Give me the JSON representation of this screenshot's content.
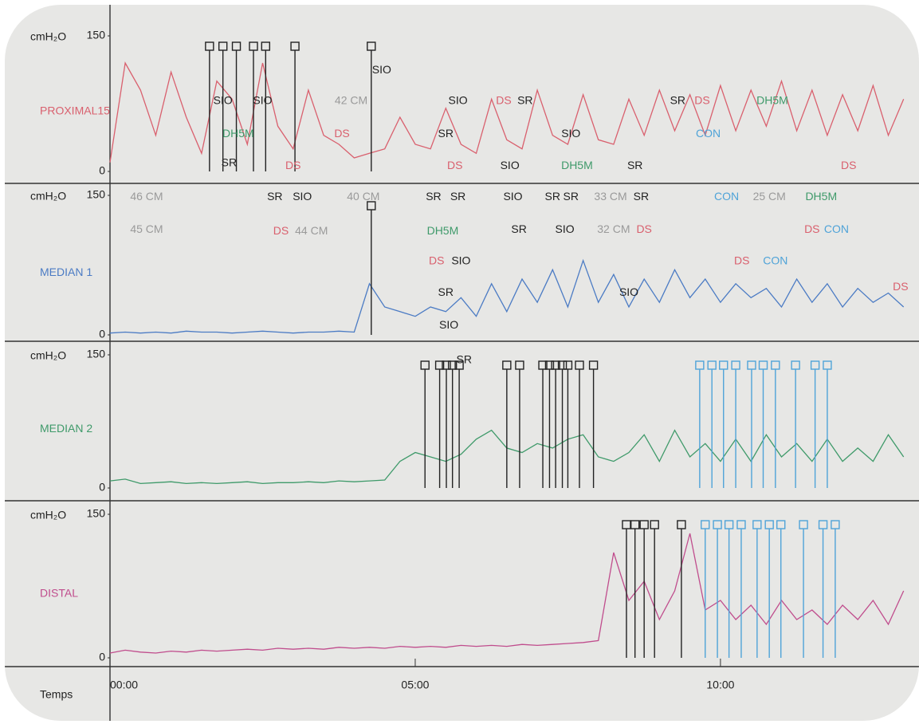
{
  "chart_data": [
    {
      "type": "line",
      "ylabel": "cmH₂O",
      "x": [
        0,
        0.25,
        0.5,
        0.75,
        1,
        1.25,
        1.5,
        1.75,
        2,
        2.25,
        2.5,
        2.75,
        3,
        3.25,
        3.5,
        3.75,
        4,
        4.25,
        4.5,
        4.75,
        5,
        5.25,
        5.5,
        5.75,
        6,
        6.25,
        6.5,
        6.75,
        7,
        7.25,
        7.5,
        7.75,
        8,
        8.25,
        8.5,
        8.75,
        9,
        9.25,
        9.5,
        9.75,
        10,
        10.25,
        10.5,
        10.75,
        11,
        11.25,
        11.5,
        11.75,
        12,
        12.25,
        12.5,
        12.75,
        13
      ],
      "series": [
        {
          "name": "PROXIMAL15",
          "color": "#d9606e",
          "values": [
            10,
            120,
            90,
            40,
            110,
            60,
            20,
            100,
            80,
            30,
            120,
            50,
            25,
            90,
            40,
            30,
            15,
            20,
            25,
            60,
            30,
            25,
            70,
            30,
            20,
            80,
            35,
            25,
            90,
            40,
            30,
            85,
            35,
            30,
            80,
            40,
            90,
            45,
            85,
            40,
            95,
            45,
            90,
            50,
            100,
            45,
            90,
            40,
            85,
            45,
            95,
            40,
            80
          ]
        }
      ],
      "xlim": [
        0,
        13.2
      ],
      "ylim": [
        0,
        150
      ],
      "yticks": [
        0,
        150
      ],
      "events": [
        {
          "color": "#222222",
          "x": [
            1.63,
            1.85,
            2.07,
            2.35,
            2.55,
            3.03,
            4.28
          ]
        }
      ],
      "annotations": [
        {
          "text": "SIO",
          "x": 1.85,
          "y": 78,
          "color": "#222222"
        },
        {
          "text": "SR",
          "x": 1.95,
          "y": 9,
          "color": "#222222"
        },
        {
          "text": "DH5M",
          "x": 2.1,
          "y": 41,
          "color": "#3f9a6a"
        },
        {
          "text": "SIO",
          "x": 2.5,
          "y": 78,
          "color": "#222222"
        },
        {
          "text": "DS",
          "x": 3.0,
          "y": 6,
          "color": "#d9606e"
        },
        {
          "text": "DS",
          "x": 3.8,
          "y": 41,
          "color": "#d9606e"
        },
        {
          "text": "42 CM",
          "x": 3.95,
          "y": 78,
          "color": "#9a9a9a"
        },
        {
          "text": "SIO",
          "x": 4.45,
          "y": 112,
          "color": "#222222"
        },
        {
          "text": "SR",
          "x": 5.5,
          "y": 41,
          "color": "#222222"
        },
        {
          "text": "DS",
          "x": 5.65,
          "y": 6,
          "color": "#d9606e"
        },
        {
          "text": "SIO",
          "x": 5.7,
          "y": 78,
          "color": "#222222"
        },
        {
          "text": "DS",
          "x": 6.45,
          "y": 78,
          "color": "#d9606e"
        },
        {
          "text": "SIO",
          "x": 6.55,
          "y": 6,
          "color": "#222222"
        },
        {
          "text": "SR",
          "x": 6.8,
          "y": 78,
          "color": "#222222"
        },
        {
          "text": "SIO",
          "x": 7.55,
          "y": 41,
          "color": "#222222"
        },
        {
          "text": "DH5M",
          "x": 7.65,
          "y": 6,
          "color": "#3f9a6a"
        },
        {
          "text": "SR",
          "x": 8.6,
          "y": 6,
          "color": "#222222"
        },
        {
          "text": "SR",
          "x": 9.3,
          "y": 78,
          "color": "#222222"
        },
        {
          "text": "DS",
          "x": 9.7,
          "y": 78,
          "color": "#d9606e"
        },
        {
          "text": "CON",
          "x": 9.8,
          "y": 41,
          "color": "#4fa3d8"
        },
        {
          "text": "DH5M",
          "x": 10.85,
          "y": 78,
          "color": "#3f9a6a"
        },
        {
          "text": "DS",
          "x": 12.1,
          "y": 6,
          "color": "#d9606e"
        }
      ]
    },
    {
      "type": "line",
      "ylabel": "cmH₂O",
      "x": [
        0,
        0.25,
        0.5,
        0.75,
        1,
        1.25,
        1.5,
        1.75,
        2,
        2.25,
        2.5,
        2.75,
        3,
        3.25,
        3.5,
        3.75,
        4,
        4.25,
        4.5,
        4.75,
        5,
        5.25,
        5.5,
        5.75,
        6,
        6.25,
        6.5,
        6.75,
        7,
        7.25,
        7.5,
        7.75,
        8,
        8.25,
        8.5,
        8.75,
        9,
        9.25,
        9.5,
        9.75,
        10,
        10.25,
        10.5,
        10.75,
        11,
        11.25,
        11.5,
        11.75,
        12,
        12.25,
        12.5,
        12.75,
        13
      ],
      "series": [
        {
          "name": "MEDIAN 1",
          "color": "#4b7bc4",
          "values": [
            2,
            3,
            2,
            3,
            2,
            4,
            3,
            3,
            2,
            3,
            4,
            3,
            2,
            3,
            3,
            4,
            3,
            55,
            30,
            25,
            20,
            30,
            25,
            40,
            20,
            55,
            25,
            60,
            35,
            70,
            30,
            80,
            35,
            65,
            30,
            60,
            35,
            70,
            40,
            60,
            35,
            55,
            40,
            50,
            30,
            60,
            35,
            55,
            30,
            50,
            35,
            45,
            30
          ]
        }
      ],
      "xlim": [
        0,
        13.2
      ],
      "ylim": [
        0,
        150
      ],
      "yticks": [
        0,
        150
      ],
      "events": [
        {
          "color": "#222222",
          "x": [
            4.28
          ]
        }
      ],
      "annotations": [
        {
          "text": "46 CM",
          "x": 0.6,
          "y": 148,
          "color": "#9a9a9a"
        },
        {
          "text": "45 CM",
          "x": 0.6,
          "y": 113,
          "color": "#9a9a9a"
        },
        {
          "text": "SR",
          "x": 2.7,
          "y": 148,
          "color": "#222222"
        },
        {
          "text": "DS",
          "x": 2.8,
          "y": 111,
          "color": "#d9606e"
        },
        {
          "text": "SIO",
          "x": 3.15,
          "y": 148,
          "color": "#222222"
        },
        {
          "text": "44 CM",
          "x": 3.3,
          "y": 111,
          "color": "#9a9a9a"
        },
        {
          "text": "40 CM",
          "x": 4.15,
          "y": 148,
          "color": "#9a9a9a"
        },
        {
          "text": "SR",
          "x": 5.3,
          "y": 148,
          "color": "#222222"
        },
        {
          "text": "DS",
          "x": 5.35,
          "y": 79,
          "color": "#d9606e"
        },
        {
          "text": "DH5M",
          "x": 5.45,
          "y": 111,
          "color": "#3f9a6a"
        },
        {
          "text": "SR",
          "x": 5.5,
          "y": 45,
          "color": "#222222"
        },
        {
          "text": "SIO",
          "x": 5.55,
          "y": 10,
          "color": "#222222"
        },
        {
          "text": "SR",
          "x": 5.7,
          "y": 148,
          "color": "#222222"
        },
        {
          "text": "SIO",
          "x": 5.75,
          "y": 79,
          "color": "#222222"
        },
        {
          "text": "SIO",
          "x": 6.6,
          "y": 148,
          "color": "#222222"
        },
        {
          "text": "SR",
          "x": 6.7,
          "y": 113,
          "color": "#222222"
        },
        {
          "text": "SR",
          "x": 7.25,
          "y": 148,
          "color": "#222222"
        },
        {
          "text": "SIO",
          "x": 7.45,
          "y": 113,
          "color": "#222222"
        },
        {
          "text": "SR",
          "x": 7.55,
          "y": 148,
          "color": "#222222"
        },
        {
          "text": "33 CM",
          "x": 8.2,
          "y": 148,
          "color": "#9a9a9a"
        },
        {
          "text": "32 CM",
          "x": 8.25,
          "y": 113,
          "color": "#9a9a9a"
        },
        {
          "text": "SIO",
          "x": 8.5,
          "y": 45,
          "color": "#222222"
        },
        {
          "text": "SR",
          "x": 8.7,
          "y": 148,
          "color": "#222222"
        },
        {
          "text": "DS",
          "x": 8.75,
          "y": 113,
          "color": "#d9606e"
        },
        {
          "text": "CON",
          "x": 10.1,
          "y": 148,
          "color": "#4fa3d8"
        },
        {
          "text": "DS",
          "x": 10.35,
          "y": 79,
          "color": "#d9606e"
        },
        {
          "text": "25 CM",
          "x": 10.8,
          "y": 148,
          "color": "#9a9a9a"
        },
        {
          "text": "CON",
          "x": 10.9,
          "y": 79,
          "color": "#4fa3d8"
        },
        {
          "text": "DS",
          "x": 11.5,
          "y": 113,
          "color": "#d9606e"
        },
        {
          "text": "DH5M",
          "x": 11.65,
          "y": 148,
          "color": "#3f9a6a"
        },
        {
          "text": "CON",
          "x": 11.9,
          "y": 113,
          "color": "#4fa3d8"
        },
        {
          "text": "DS",
          "x": 12.95,
          "y": 51,
          "color": "#d9606e"
        }
      ]
    },
    {
      "type": "line",
      "ylabel": "cmH₂O",
      "x": [
        0,
        0.25,
        0.5,
        0.75,
        1,
        1.25,
        1.5,
        1.75,
        2,
        2.25,
        2.5,
        2.75,
        3,
        3.25,
        3.5,
        3.75,
        4,
        4.25,
        4.5,
        4.75,
        5,
        5.25,
        5.5,
        5.75,
        6,
        6.25,
        6.5,
        6.75,
        7,
        7.25,
        7.5,
        7.75,
        8,
        8.25,
        8.5,
        8.75,
        9,
        9.25,
        9.5,
        9.75,
        10,
        10.25,
        10.5,
        10.75,
        11,
        11.25,
        11.5,
        11.75,
        12,
        12.25,
        12.5,
        12.75,
        13
      ],
      "series": [
        {
          "name": "MEDIAN 2",
          "color": "#3f9a6a",
          "values": [
            8,
            10,
            5,
            6,
            7,
            5,
            6,
            5,
            6,
            7,
            5,
            6,
            6,
            7,
            6,
            8,
            7,
            8,
            9,
            30,
            40,
            35,
            30,
            38,
            55,
            65,
            45,
            40,
            50,
            45,
            55,
            60,
            35,
            30,
            40,
            60,
            30,
            65,
            35,
            50,
            30,
            55,
            30,
            60,
            35,
            50,
            30,
            55,
            30,
            45,
            30,
            60,
            35
          ]
        }
      ],
      "xlim": [
        0,
        13.2
      ],
      "ylim": [
        0,
        150
      ],
      "yticks": [
        0,
        150
      ],
      "events": [
        {
          "color": "#222222",
          "x": [
            5.16,
            5.4,
            5.51,
            5.61,
            5.72,
            6.5,
            6.71,
            7.09,
            7.2,
            7.3,
            7.41,
            7.5,
            7.69,
            7.92
          ]
        },
        {
          "color": "#4fa3d8",
          "x": [
            9.66,
            9.86,
            10.05,
            10.25,
            10.51,
            10.7,
            10.9,
            11.23,
            11.55,
            11.75
          ]
        }
      ],
      "annotations": [
        {
          "text": "SR",
          "x": 5.8,
          "y": 144,
          "color": "#222222"
        }
      ]
    },
    {
      "type": "line",
      "ylabel": "cmH₂O",
      "xlabel": "Temps",
      "x": [
        0,
        0.25,
        0.5,
        0.75,
        1,
        1.25,
        1.5,
        1.75,
        2,
        2.25,
        2.5,
        2.75,
        3,
        3.25,
        3.5,
        3.75,
        4,
        4.25,
        4.5,
        4.75,
        5,
        5.25,
        5.5,
        5.75,
        6,
        6.25,
        6.5,
        6.75,
        7,
        7.25,
        7.5,
        7.75,
        8,
        8.25,
        8.5,
        8.75,
        9,
        9.25,
        9.5,
        9.75,
        10,
        10.25,
        10.5,
        10.75,
        11,
        11.25,
        11.5,
        11.75,
        12,
        12.25,
        12.5,
        12.75,
        13
      ],
      "series": [
        {
          "name": "DISTAL",
          "color": "#c04d8d",
          "values": [
            5,
            8,
            6,
            5,
            7,
            6,
            8,
            7,
            8,
            9,
            8,
            10,
            9,
            10,
            9,
            11,
            10,
            11,
            10,
            12,
            11,
            12,
            11,
            13,
            12,
            13,
            12,
            14,
            13,
            14,
            15,
            16,
            18,
            110,
            60,
            80,
            40,
            70,
            130,
            50,
            60,
            40,
            55,
            35,
            60,
            40,
            50,
            35,
            55,
            40,
            60,
            35,
            70
          ]
        }
      ],
      "xlim": [
        0,
        13.2
      ],
      "ylim": [
        0,
        150
      ],
      "yticks": [
        0,
        150
      ],
      "xticks": [
        {
          "value": 0,
          "label": "00:00"
        },
        {
          "value": 5,
          "label": "05:00"
        },
        {
          "value": 10,
          "label": "10:00"
        }
      ],
      "events": [
        {
          "color": "#222222",
          "x": [
            8.46,
            8.6,
            8.75,
            8.92,
            9.36
          ]
        },
        {
          "color": "#4fa3d8",
          "x": [
            9.75,
            9.95,
            10.14,
            10.34,
            10.6,
            10.8,
            10.99,
            11.36,
            11.68,
            11.88
          ]
        }
      ],
      "annotations": []
    }
  ]
}
